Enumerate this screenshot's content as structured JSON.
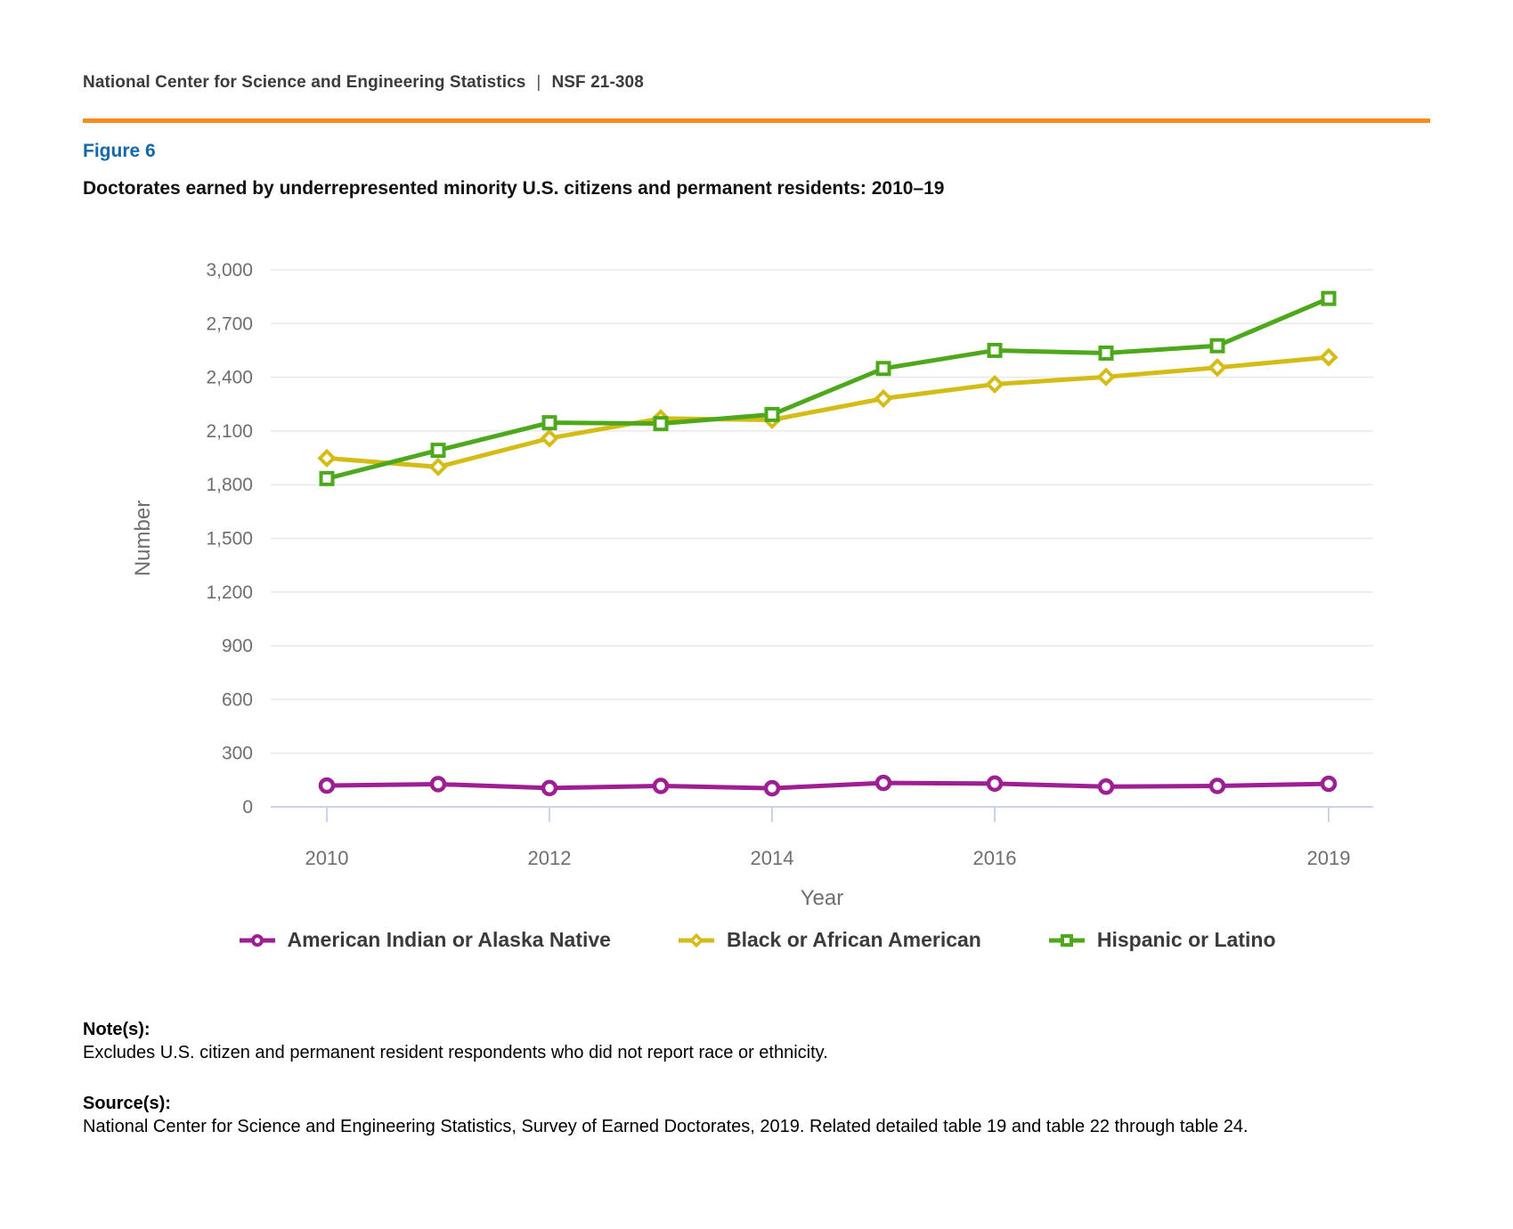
{
  "header": {
    "org": "National Center for Science and Engineering Statistics",
    "divider": "|",
    "report_number": "NSF 21-308"
  },
  "figure": {
    "label": "Figure 6",
    "title": "Doctorates earned by underrepresented minority U.S. citizens and permanent residents: 2010–19"
  },
  "colors": {
    "orange_rule": "#F68B1E",
    "figure_label_blue": "#1467A8",
    "grid_line": "#E9E9E9",
    "axis_line": "#C9D4EA",
    "axis_text": "#6E6E6E",
    "legend_text": "#3b3b3b"
  },
  "chart_data": {
    "type": "line",
    "title": "Doctorates earned by underrepresented minority U.S. citizens and permanent residents: 2010–19",
    "xlabel": "Year",
    "ylabel": "Number",
    "x": [
      2010,
      2011,
      2012,
      2013,
      2014,
      2015,
      2016,
      2017,
      2018,
      2019
    ],
    "x_tick_labels": [
      "2010",
      "2012",
      "2014",
      "2016",
      "2019"
    ],
    "x_tick_years": [
      2010,
      2012,
      2014,
      2016,
      2019
    ],
    "ylim": [
      0,
      3000
    ],
    "ytick_step": 300,
    "grid": true,
    "legend_position": "bottom",
    "series": [
      {
        "name": "American Indian or Alaska Native",
        "color": "#9E1F93",
        "marker": "circle",
        "values": [
          119,
          127,
          105,
          117,
          104,
          134,
          130,
          113,
          117,
          129
        ]
      },
      {
        "name": "Black or African American",
        "color": "#D4BC17",
        "marker": "diamond",
        "values": [
          1948,
          1899,
          2059,
          2170,
          2162,
          2281,
          2361,
          2402,
          2454,
          2512
        ]
      },
      {
        "name": "Hispanic or Latino",
        "color": "#4EA81C",
        "marker": "square",
        "values": [
          1834,
          1992,
          2146,
          2141,
          2192,
          2449,
          2550,
          2535,
          2576,
          2840
        ]
      }
    ]
  },
  "notes": {
    "note_label": "Note(s):",
    "note_text": "Excludes U.S. citizen and permanent resident respondents who did not report race or ethnicity.",
    "source_label": "Source(s):",
    "source_text": "National Center for Science and Engineering Statistics, Survey of Earned Doctorates, 2019. Related detailed table 19 and table 22 through table 24."
  }
}
